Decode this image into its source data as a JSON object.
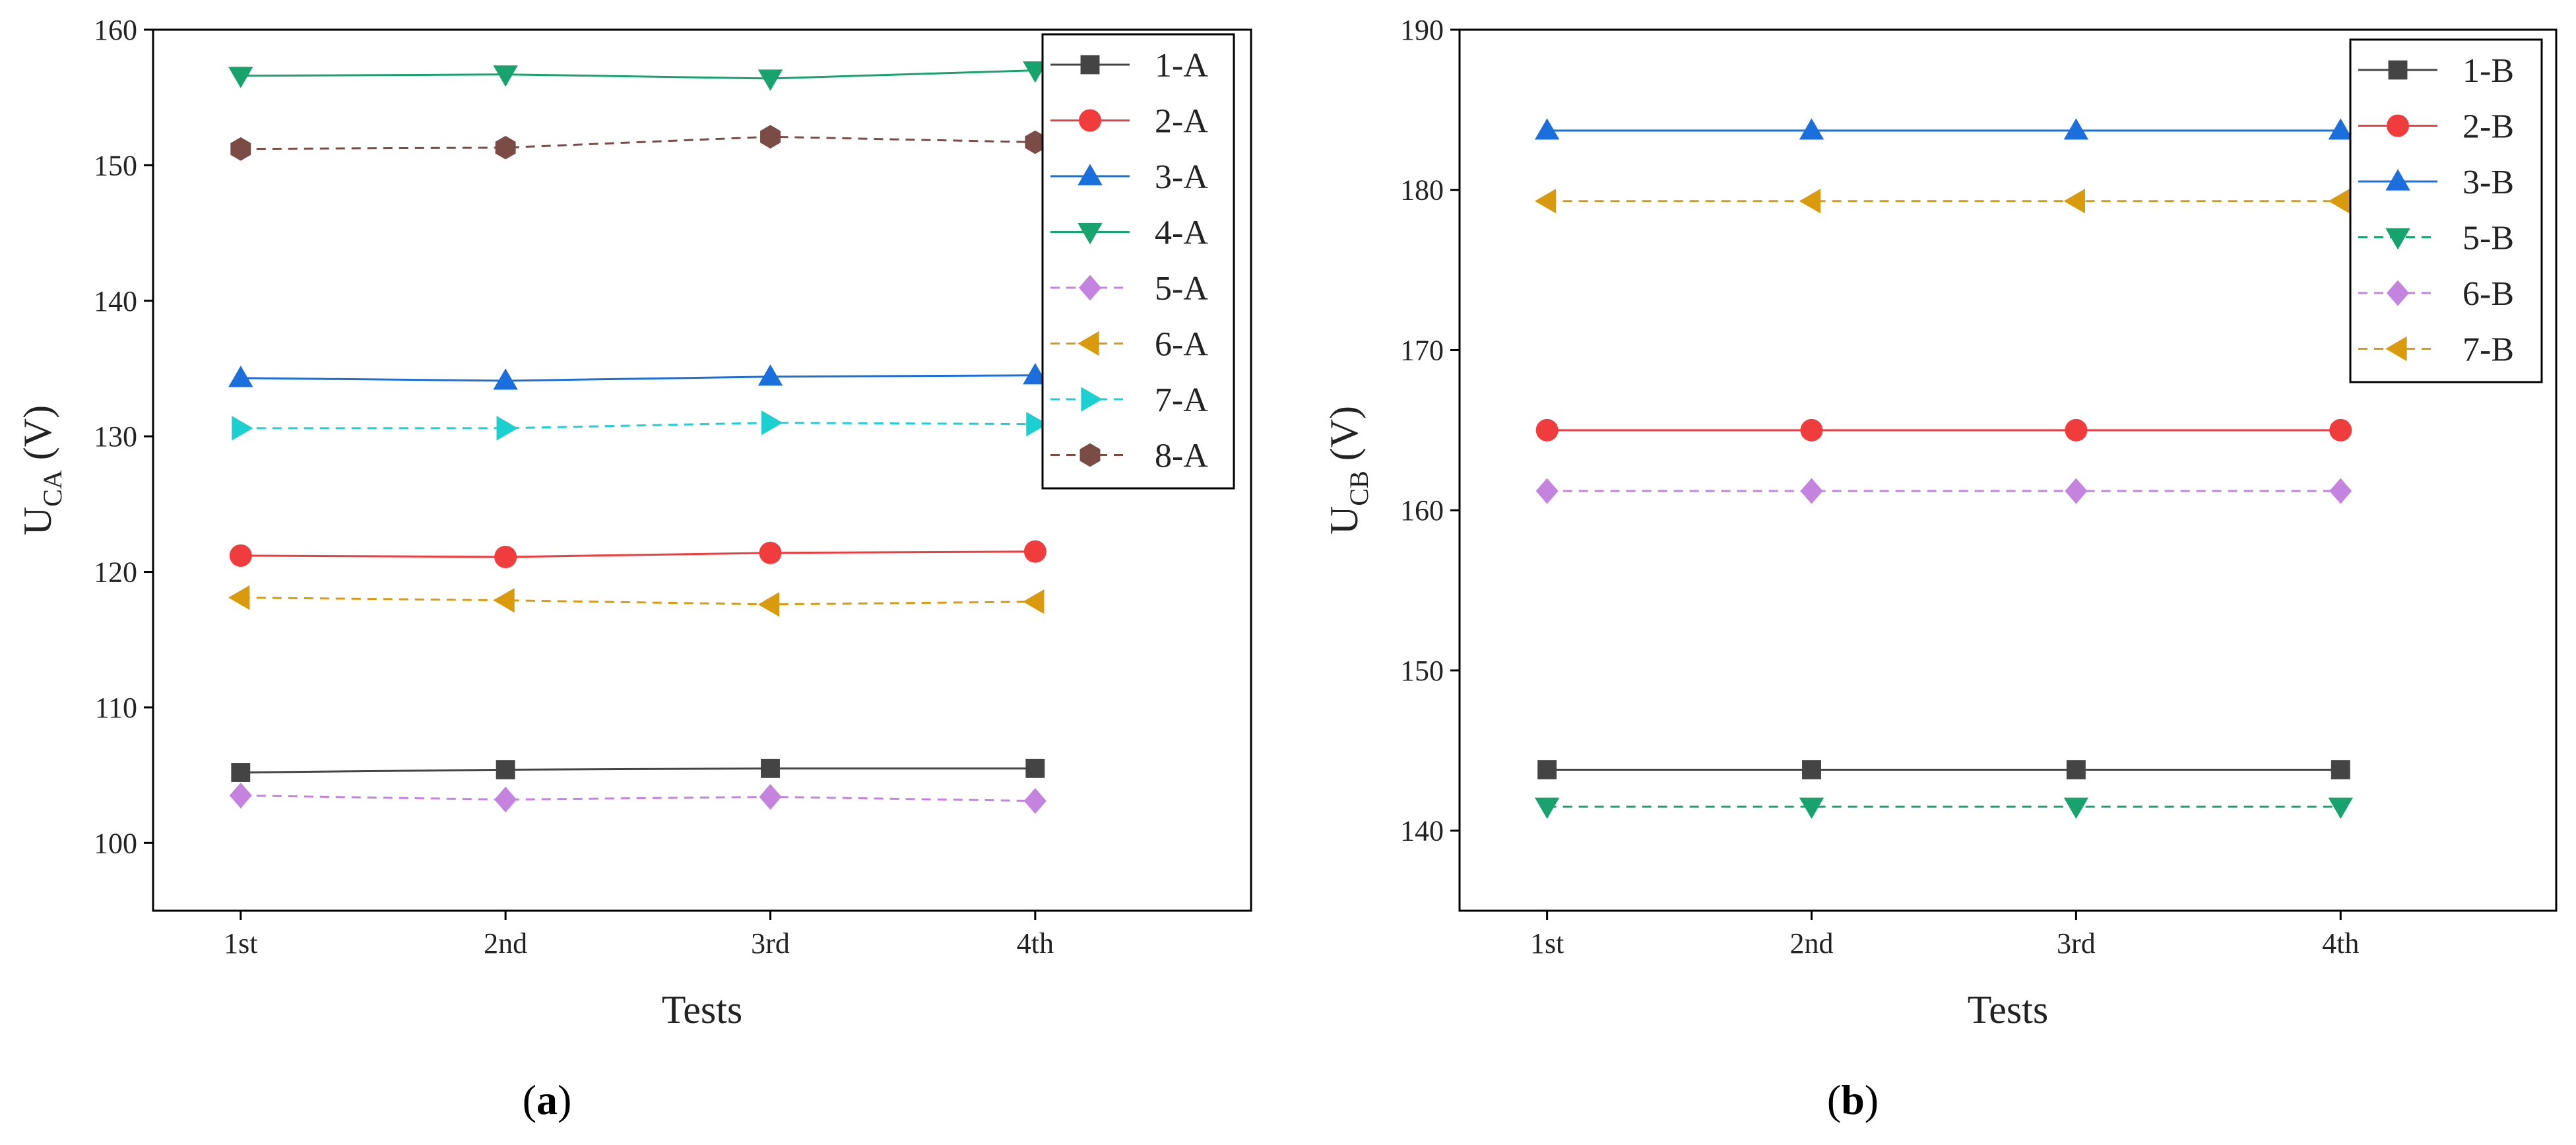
{
  "chart_data": [
    {
      "type": "line",
      "panel_label": "a",
      "xlabel": "Tests",
      "ylabel_main": "U",
      "ylabel_sub": "CA",
      "ylabel_unit": " (V)",
      "categories": [
        "1st",
        "2nd",
        "3rd",
        "4th"
      ],
      "ylim": [
        95,
        160
      ],
      "yticks": [
        100,
        110,
        120,
        130,
        140,
        150,
        160
      ],
      "legend_position": "top-right",
      "series": [
        {
          "name": "1-A",
          "values": [
            105.2,
            105.4,
            105.5,
            105.5
          ],
          "color": "#444444",
          "marker": "square",
          "dashed": false
        },
        {
          "name": "2-A",
          "values": [
            121.2,
            121.1,
            121.4,
            121.5
          ],
          "color": "#f03c3c",
          "marker": "circle",
          "dashed": false
        },
        {
          "name": "3-A",
          "values": [
            134.3,
            134.1,
            134.4,
            134.5
          ],
          "color": "#1a6fdc",
          "marker": "triangle-up",
          "dashed": false
        },
        {
          "name": "4-A",
          "values": [
            156.6,
            156.7,
            156.4,
            157.0
          ],
          "color": "#18a26e",
          "marker": "triangle-down",
          "dashed": false
        },
        {
          "name": "5-A",
          "values": [
            103.5,
            103.2,
            103.4,
            103.1
          ],
          "color": "#c583e0",
          "marker": "diamond",
          "dashed": true
        },
        {
          "name": "6-A",
          "values": [
            118.1,
            117.9,
            117.6,
            117.8
          ],
          "color": "#d99b0d",
          "marker": "triangle-left",
          "dashed": true
        },
        {
          "name": "7-A",
          "values": [
            130.6,
            130.6,
            131.0,
            130.9
          ],
          "color": "#1ccfd0",
          "marker": "triangle-right",
          "dashed": true
        },
        {
          "name": "8-A",
          "values": [
            151.2,
            151.3,
            152.1,
            151.7
          ],
          "color": "#7b4b45",
          "marker": "hexagon",
          "dashed": true
        }
      ]
    },
    {
      "type": "line",
      "panel_label": "b",
      "xlabel": "Tests",
      "ylabel_main": "U",
      "ylabel_sub": "CB",
      "ylabel_unit": " (V)",
      "categories": [
        "1st",
        "2nd",
        "3rd",
        "4th"
      ],
      "ylim": [
        135,
        190
      ],
      "yticks": [
        140,
        150,
        160,
        170,
        180,
        190
      ],
      "legend_position": "top-right",
      "series": [
        {
          "name": "1-B",
          "values": [
            143.8,
            143.8,
            143.8,
            143.8
          ],
          "color": "#444444",
          "marker": "square",
          "dashed": false
        },
        {
          "name": "2-B",
          "values": [
            165.0,
            165.0,
            165.0,
            165.0
          ],
          "color": "#f03c3c",
          "marker": "circle",
          "dashed": false
        },
        {
          "name": "3-B",
          "values": [
            183.7,
            183.7,
            183.7,
            183.7
          ],
          "color": "#1a6fdc",
          "marker": "triangle-up",
          "dashed": false
        },
        {
          "name": "5-B",
          "values": [
            141.5,
            141.5,
            141.5,
            141.5
          ],
          "color": "#18a26e",
          "marker": "triangle-down",
          "dashed": true
        },
        {
          "name": "6-B",
          "values": [
            161.2,
            161.2,
            161.2,
            161.2
          ],
          "color": "#c583e0",
          "marker": "diamond",
          "dashed": true
        },
        {
          "name": "7-B",
          "values": [
            179.3,
            179.3,
            179.3,
            179.3
          ],
          "color": "#d99b0d",
          "marker": "triangle-left",
          "dashed": true
        }
      ]
    }
  ]
}
